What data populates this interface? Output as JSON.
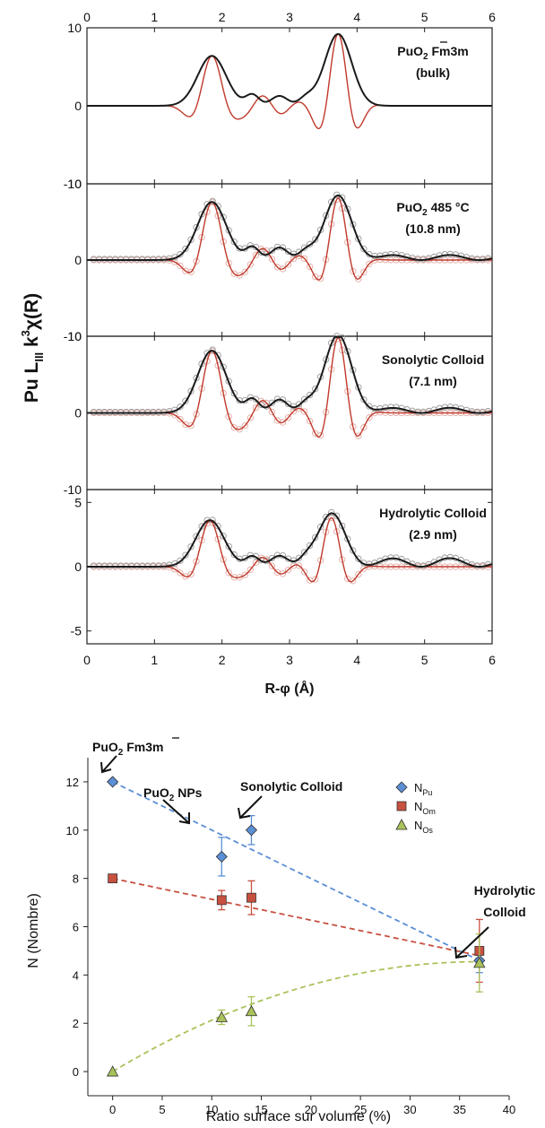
{
  "chart_data": [
    {
      "type": "line",
      "xlabel": "R-φ (Å)",
      "ylabel": "Pu L",
      "ylabel_sub": "III",
      "ylabel_mid": " k",
      "ylabel_sup": "3",
      "ylabel_end": "χ(R)",
      "xlim": [
        0,
        6
      ],
      "xticks": [
        0,
        1,
        2,
        3,
        4,
        5,
        6
      ],
      "grid": false,
      "legend": "none",
      "colors": {
        "magnitude": "#1a1a1a",
        "imaginary": "#c0392b",
        "data_markers": "#999999"
      },
      "panels": [
        {
          "label_line1": "PuO",
          "label_sub": "2",
          "label_rest": " Fm3m",
          "label_line2": "(bulk)",
          "ylim": [
            -10,
            10
          ],
          "yticks": [
            10,
            0,
            -10
          ],
          "peaks": [
            {
              "r": 1.85,
              "amp": 6.4
            },
            {
              "r": 3.72,
              "amp": 9.2
            }
          ],
          "has_data_markers": false
        },
        {
          "label_line1": "PuO",
          "label_sub": "2",
          "label_rest": " 485 °C",
          "label_line2": "(10.8 nm)",
          "ylim": [
            -10,
            10
          ],
          "yticks": [
            10,
            0,
            -10
          ],
          "peaks": [
            {
              "r": 1.85,
              "amp": 7.6
            },
            {
              "r": 3.72,
              "amp": 8.1
            }
          ],
          "has_data_markers": true
        },
        {
          "label_line1": "Sonolytic Colloid",
          "label_sub": "",
          "label_rest": "",
          "label_line2": "(7.1 nm)",
          "ylim": [
            -10,
            10
          ],
          "yticks": [
            10,
            0,
            -10
          ],
          "peaks": [
            {
              "r": 1.85,
              "amp": 8.1
            },
            {
              "r": 3.72,
              "amp": 9.8
            }
          ],
          "has_data_markers": true
        },
        {
          "label_line1": "Hydrolytic Colloid",
          "label_sub": "",
          "label_rest": "",
          "label_line2": "(2.9 nm)",
          "ylim": [
            -6,
            6
          ],
          "yticks": [
            5,
            0,
            -5
          ],
          "peaks": [
            {
              "r": 1.82,
              "amp": 3.6
            },
            {
              "r": 3.62,
              "amp": 3.8
            }
          ],
          "has_data_markers": true
        }
      ]
    },
    {
      "type": "scatter",
      "xlabel": "Ratio surface sur volume (%)",
      "ylabel": "N (Nombre)",
      "xlim": [
        -2.5,
        40
      ],
      "ylim": [
        -1,
        13
      ],
      "xticks": [
        0,
        5,
        10,
        15,
        20,
        25,
        30,
        35,
        40
      ],
      "yticks": [
        0,
        2,
        4,
        6,
        8,
        10,
        12
      ],
      "grid": false,
      "legend": "top-right",
      "series": [
        {
          "name": "N",
          "sub": "Pu",
          "marker": "diamond",
          "color": "#5b8fd6",
          "x": [
            0,
            11,
            14,
            37
          ],
          "y": [
            12,
            8.9,
            10,
            4.6
          ],
          "err": [
            0,
            0.8,
            0.6,
            0.5
          ],
          "fit": {
            "x": [
              0,
              37
            ],
            "y": [
              12,
              4.6
            ]
          }
        },
        {
          "name": "N",
          "sub": "Om",
          "marker": "square",
          "color": "#c8503f",
          "x": [
            0,
            11,
            14,
            37
          ],
          "y": [
            8,
            7.1,
            7.2,
            5.0
          ],
          "err": [
            0,
            0.4,
            0.7,
            1.3
          ],
          "fit": {
            "x": [
              0,
              37
            ],
            "y": [
              8,
              4.8
            ]
          }
        },
        {
          "name": "N",
          "sub": "Os",
          "marker": "triangle",
          "color": "#a9c25a",
          "x": [
            0,
            11,
            14,
            37
          ],
          "y": [
            0,
            2.25,
            2.5,
            4.5
          ],
          "err": [
            0,
            0.3,
            0.6,
            1.2
          ],
          "fit": {
            "x": [
              0,
              37
            ],
            "y": [
              0,
              4.55
            ],
            "curved": true
          }
        }
      ],
      "annotations": [
        {
          "text": "PuO",
          "sub": "2",
          "rest": " Fm3m",
          "overline": true
        },
        {
          "text": "PuO",
          "sub": "2",
          "rest": " NPs",
          "overline": false
        },
        {
          "text": "Sonolytic Colloid",
          "sub": "",
          "rest": "",
          "overline": false
        },
        {
          "text": "Hydrolytic",
          "sub": "",
          "rest": "",
          "overline": false
        },
        {
          "text": "Colloid",
          "sub": "",
          "rest": "",
          "overline": false
        }
      ]
    }
  ]
}
